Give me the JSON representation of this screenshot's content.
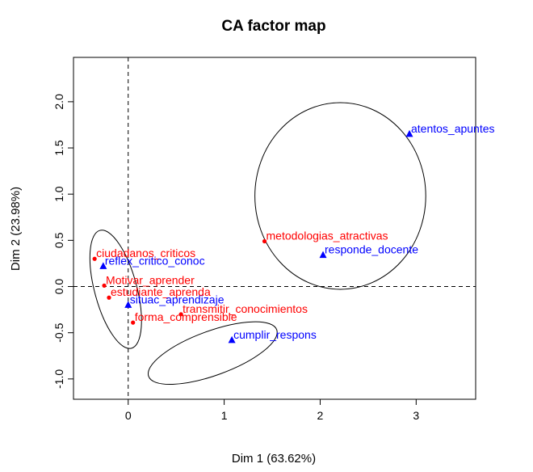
{
  "chart_data": {
    "type": "scatter",
    "title": "CA factor map",
    "xlabel": "Dim 1 (63.62%)",
    "ylabel": "Dim 2 (23.98%)",
    "xlim": [
      -0.57,
      3.62
    ],
    "ylim": [
      -1.22,
      2.48
    ],
    "xticks": [
      0,
      1,
      2,
      3
    ],
    "yticks": [
      -1.0,
      -0.5,
      0.0,
      0.5,
      1.0,
      1.5,
      2.0
    ],
    "xtick_labels": [
      "0",
      "1",
      "2",
      "3"
    ],
    "ytick_labels": [
      "-1.0",
      "-0.5",
      "0.0",
      "0.5",
      "1.0",
      "1.5",
      "2.0"
    ],
    "grid": false,
    "reference_lines": {
      "x": 0,
      "y": 0,
      "style": "dashed"
    },
    "series": [
      {
        "color": "#ff0000",
        "marker": "circle",
        "points": [
          {
            "x": -0.35,
            "y": 0.3,
            "label": "ciudadanos_criticos"
          },
          {
            "x": -0.25,
            "y": 0.01,
            "label": "Motivar_aprender"
          },
          {
            "x": -0.2,
            "y": -0.12,
            "label": "estudiante_aprenda"
          },
          {
            "x": 0.55,
            "y": -0.3,
            "label": "transmitir_conocimientos"
          },
          {
            "x": 0.05,
            "y": -0.39,
            "label": "forma_comprensible"
          },
          {
            "x": 1.42,
            "y": 0.49,
            "label": "metodologias_atractivas"
          }
        ]
      },
      {
        "color": "#0000ff",
        "marker": "triangle",
        "points": [
          {
            "x": -0.26,
            "y": 0.22,
            "label": "reflex_critico_conoc"
          },
          {
            "x": 0.0,
            "y": -0.2,
            "label": "situac_aprendizaje"
          },
          {
            "x": 1.08,
            "y": -0.58,
            "label": "cumplir_respons"
          },
          {
            "x": 2.03,
            "y": 0.34,
            "label": "responde_docente"
          },
          {
            "x": 2.93,
            "y": 1.65,
            "label": "atentos_apuntes"
          }
        ]
      }
    ],
    "ellipses": [
      {
        "cx": -0.13,
        "cy": -0.03,
        "rx": 0.22,
        "ry": 0.66,
        "rotation_deg": 15
      },
      {
        "cx": 0.88,
        "cy": -0.72,
        "rx": 0.71,
        "ry": 0.24,
        "rotation_deg": 20
      },
      {
        "cx": 2.21,
        "cy": 0.98,
        "rx": 0.89,
        "ry": 1.01,
        "rotation_deg": 0
      }
    ]
  }
}
